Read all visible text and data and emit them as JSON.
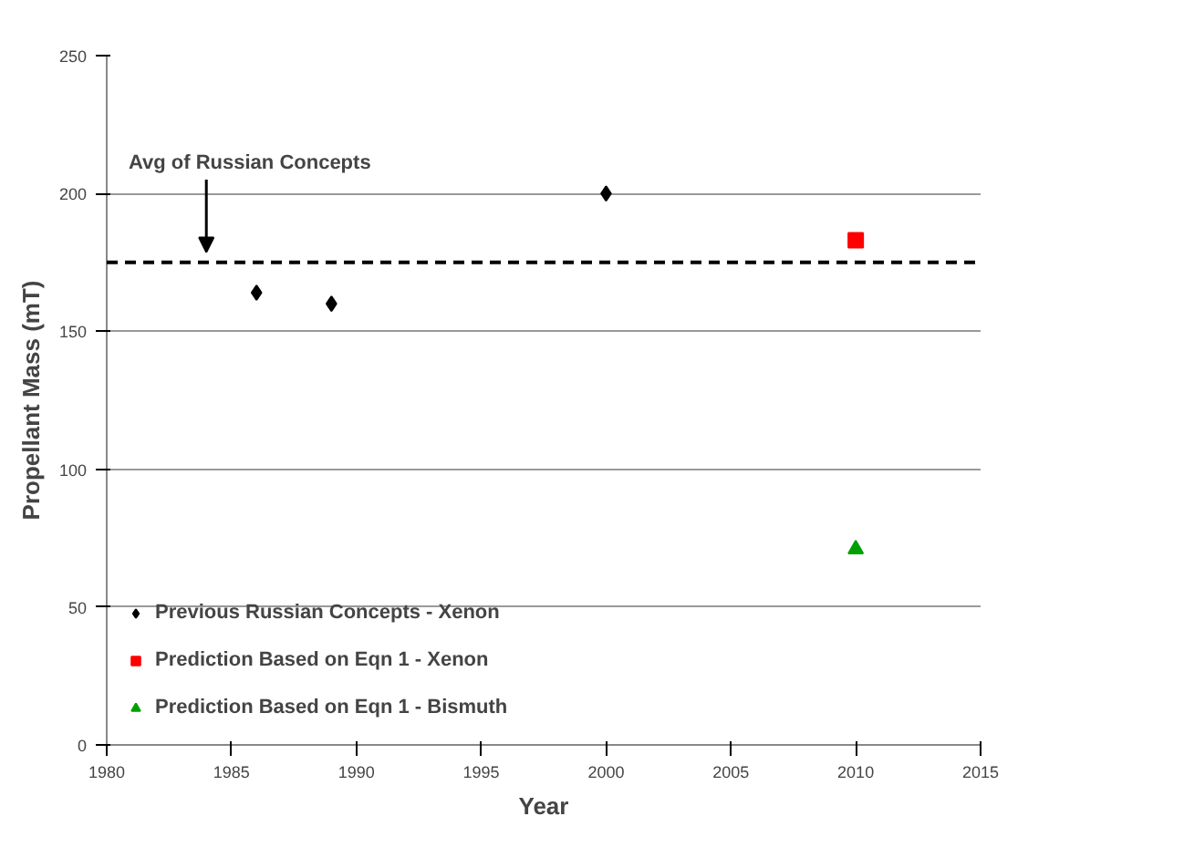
{
  "chart_data": {
    "type": "scatter",
    "xlabel": "Year",
    "ylabel": "Propellant Mass (mT)",
    "xlim": [
      1980,
      2015
    ],
    "xticks": [
      1980,
      1985,
      1990,
      1995,
      2000,
      2005,
      2010,
      2015
    ],
    "ylim": [
      0,
      250
    ],
    "yticks": [
      0,
      50,
      100,
      150,
      200,
      250
    ],
    "grid": "y",
    "legend": "bottom left",
    "series": [
      {
        "name": "Previous Russian Concepts - Xenon",
        "color": "#000000",
        "marker": "diamond",
        "x": [
          1986,
          1989,
          2000
        ],
        "values": [
          164,
          160,
          200
        ]
      },
      {
        "name": "Prediction Based on Eqn 1 - Xenon",
        "color": "#ff0000",
        "marker": "square",
        "x": [
          2010
        ],
        "values": [
          183
        ]
      },
      {
        "name": "Prediction Based on Eqn 1 - Bismuth",
        "color": "#00a000",
        "marker": "triangle",
        "x": [
          2010
        ],
        "values": [
          71
        ]
      }
    ],
    "ref_lines": [
      {
        "axis": "y",
        "value": 175,
        "label": "Avg of Russian Concepts",
        "color": "#000000",
        "line_style": "dashed"
      }
    ]
  }
}
